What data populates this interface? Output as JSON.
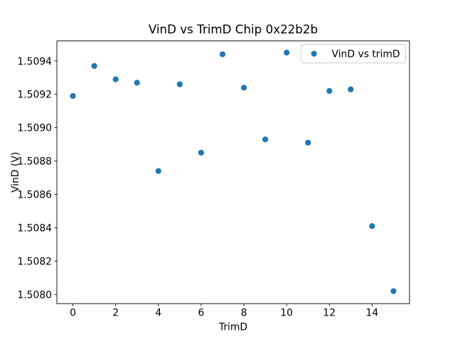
{
  "figure": {
    "background": "#ffffff",
    "axes_edge_color": "#000000"
  },
  "chart_data": {
    "type": "scatter",
    "title": "VinD vs TrimD Chip 0x22b2b",
    "xlabel": "TrimD",
    "ylabel": "VinD (V)",
    "legend": {
      "position": "upper right",
      "border_color": "#cccccc",
      "entries": [
        {
          "label": "VinD vs trimD",
          "marker": "dot",
          "marker_color": "#1f77b4"
        }
      ]
    },
    "series": [
      {
        "name": "VinD vs trimD",
        "marker_color": "#1f77b4",
        "x": [
          0,
          1,
          2,
          3,
          4,
          5,
          6,
          7,
          8,
          9,
          10,
          11,
          12,
          13,
          14,
          15
        ],
        "y": [
          1.50919,
          1.50937,
          1.50929,
          1.50927,
          1.50874,
          1.50926,
          1.50885,
          1.50944,
          1.50924,
          1.50893,
          1.50945,
          1.50891,
          1.50922,
          1.50923,
          1.50841,
          1.50802
        ]
      }
    ],
    "xlim": [
      -0.75,
      15.75
    ],
    "ylim": [
      1.507945,
      1.50952
    ],
    "xticks": {
      "values": [
        0,
        2,
        4,
        6,
        8,
        10,
        12,
        14
      ],
      "labels": [
        "0",
        "2",
        "4",
        "6",
        "8",
        "10",
        "12",
        "14"
      ]
    },
    "yticks": {
      "values": [
        1.508,
        1.5082,
        1.5084,
        1.5086,
        1.5088,
        1.509,
        1.5092,
        1.5094
      ],
      "labels": [
        "1.5080",
        "1.5082",
        "1.5084",
        "1.5086",
        "1.5088",
        "1.5090",
        "1.5092",
        "1.5094"
      ]
    },
    "grid": false
  }
}
